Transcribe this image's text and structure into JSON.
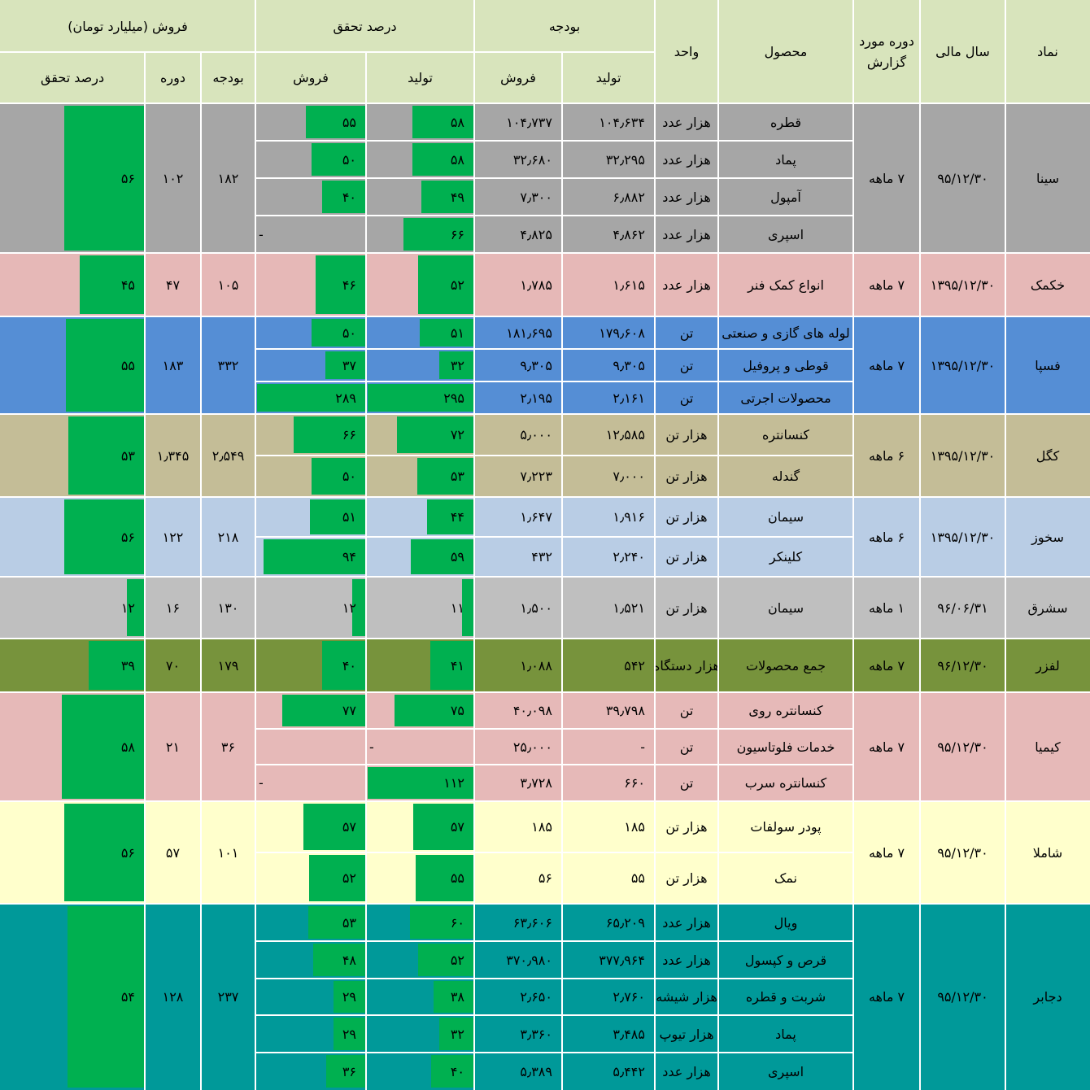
{
  "colors": {
    "bar": "#00B050",
    "header": "#D8E4BC",
    "grid": "#FFFFFF"
  },
  "header": {
    "symbol": "نماد",
    "fiscal_year": "سال مالی",
    "period_line1": "دوره مورد",
    "period_line2": "گزارش",
    "product": "محصول",
    "unit": "واحد",
    "budget": "بودجه",
    "budget_production": "تولید",
    "budget_sales": "فروش",
    "achievement": "درصد تحقق",
    "ach_production": "تولید",
    "ach_sales": "فروش",
    "sales_group": "فروش (میلیارد تومان)",
    "sales_budget": "بودجه",
    "sales_period": "دوره",
    "sales_achievement": "درصد تحقق"
  },
  "companies": [
    {
      "symbol": "سینا",
      "year": "۹۵/۱۲/۳۰",
      "period": "۷ ماهه",
      "color": "#A6A6A6",
      "sales": {
        "budget": "۱۸۲",
        "period": "۱۰۲",
        "achievement": "۵۶",
        "achievement_pct": 56
      },
      "rows": [
        {
          "product": "قطره",
          "unit": "هزار عدد",
          "budget_prod": "۱۰۴٫۶۳۴",
          "budget_sales": "۱۰۴٫۷۳۷",
          "prod_text": "۵۸",
          "prod_pct": 58,
          "sales_text": "۵۵",
          "sales_pct": 55
        },
        {
          "product": "پماد",
          "unit": "هزار عدد",
          "budget_prod": "۳۲٫۲۹۵",
          "budget_sales": "۳۲٫۶۸۰",
          "prod_text": "۵۸",
          "prod_pct": 58,
          "sales_text": "۵۰",
          "sales_pct": 50
        },
        {
          "product": "آمپول",
          "unit": "هزار عدد",
          "budget_prod": "۶٫۸۸۲",
          "budget_sales": "۷٫۳۰۰",
          "prod_text": "۴۹",
          "prod_pct": 49,
          "sales_text": "۴۰",
          "sales_pct": 40
        },
        {
          "product": "اسپری",
          "unit": "هزار عدد",
          "budget_prod": "۴٫۸۶۲",
          "budget_sales": "۴٫۸۲۵",
          "prod_text": "۶۶",
          "prod_pct": 66,
          "sales_text": "-",
          "sales_pct": 0
        }
      ]
    },
    {
      "symbol": "خکمک",
      "year": "۱۳۹۵/۱۲/۳۰",
      "period": "۷ ماهه",
      "color": "#E6B8B7",
      "sales": {
        "budget": "۱۰۵",
        "period": "۴۷",
        "achievement": "۴۵",
        "achievement_pct": 45
      },
      "rows": [
        {
          "product": "انواع کمک فنر",
          "unit": "هزار عدد",
          "budget_prod": "۱٫۶۱۵",
          "budget_sales": "۱٫۷۸۵",
          "prod_text": "۵۲",
          "prod_pct": 52,
          "sales_text": "۴۶",
          "sales_pct": 46
        }
      ]
    },
    {
      "symbol": "فسپا",
      "year": "۱۳۹۵/۱۲/۳۰",
      "period": "۷ ماهه",
      "color": "#558ED5",
      "sales": {
        "budget": "۳۳۲",
        "period": "۱۸۳",
        "achievement": "۵۵",
        "achievement_pct": 55
      },
      "rows": [
        {
          "product": "لوله های گازی و صنعتی",
          "unit": "تن",
          "budget_prod": "۱۷۹٫۶۰۸",
          "budget_sales": "۱۸۱٫۶۹۵",
          "prod_text": "۵۱",
          "prod_pct": 51,
          "sales_text": "۵۰",
          "sales_pct": 50
        },
        {
          "product": "قوطی و پروفیل",
          "unit": "تن",
          "budget_prod": "۹٫۳۰۵",
          "budget_sales": "۹٫۳۰۵",
          "prod_text": "۳۲",
          "prod_pct": 32,
          "sales_text": "۳۷",
          "sales_pct": 37
        },
        {
          "product": "محصولات اجرتی",
          "unit": "تن",
          "budget_prod": "۲٫۱۶۱",
          "budget_sales": "۲٫۱۹۵",
          "prod_text": "۲۹۵",
          "prod_pct": 295,
          "sales_text": "۲۸۹",
          "sales_pct": 289
        }
      ]
    },
    {
      "symbol": "کگل",
      "year": "۱۳۹۵/۱۲/۳۰",
      "period": "۶ ماهه",
      "color": "#C4BD97",
      "sales": {
        "budget": "۲٫۵۴۹",
        "period": "۱٫۳۴۵",
        "achievement": "۵۳",
        "achievement_pct": 53
      },
      "rows": [
        {
          "product": "کنسانتره",
          "unit": "هزار تن",
          "budget_prod": "۱۲٫۵۸۵",
          "budget_sales": "۵٫۰۰۰",
          "prod_text": "۷۲",
          "prod_pct": 72,
          "sales_text": "۶۶",
          "sales_pct": 66
        },
        {
          "product": "گندله",
          "unit": "هزار تن",
          "budget_prod": "۷٫۰۰۰",
          "budget_sales": "۷٫۲۲۳",
          "prod_text": "۵۳",
          "prod_pct": 53,
          "sales_text": "۵۰",
          "sales_pct": 50
        }
      ]
    },
    {
      "symbol": "سخوز",
      "year": "۱۳۹۵/۱۲/۳۰",
      "period": "۶ ماهه",
      "color": "#B9CDE5",
      "sales": {
        "budget": "۲۱۸",
        "period": "۱۲۲",
        "achievement": "۵۶",
        "achievement_pct": 56
      },
      "rows": [
        {
          "product": "سیمان",
          "unit": "هزار تن",
          "budget_prod": "۱٫۹۱۶",
          "budget_sales": "۱٫۶۴۷",
          "prod_text": "۴۴",
          "prod_pct": 44,
          "sales_text": "۵۱",
          "sales_pct": 51
        },
        {
          "product": "کلینکر",
          "unit": "هزار تن",
          "budget_prod": "۲٫۲۴۰",
          "budget_sales": "۴۳۲",
          "prod_text": "۵۹",
          "prod_pct": 59,
          "sales_text": "۹۴",
          "sales_pct": 94
        }
      ]
    },
    {
      "symbol": "سشرق",
      "year": "۹۶/۰۶/۳۱",
      "period": "۱ ماهه",
      "color": "#BFBFBF",
      "sales": {
        "budget": "۱۳۰",
        "period": "۱۶",
        "achievement": "۱۲",
        "achievement_pct": 12
      },
      "rows": [
        {
          "product": "سیمان",
          "unit": "هزار تن",
          "budget_prod": "۱٫۵۲۱",
          "budget_sales": "۱٫۵۰۰",
          "prod_text": "۱۱",
          "prod_pct": 11,
          "sales_text": "۱۲",
          "sales_pct": 12
        }
      ]
    },
    {
      "symbol": "لفزر",
      "year": "۹۶/۱۲/۳۰",
      "period": "۷ ماهه",
      "color": "#77933C",
      "sales": {
        "budget": "۱۷۹",
        "period": "۷۰",
        "achievement": "۳۹",
        "achievement_pct": 39
      },
      "rows": [
        {
          "product": "جمع محصولات",
          "unit": "هزار دستگاه",
          "budget_prod": "۵۴۲",
          "budget_sales": "۱٫۰۸۸",
          "prod_text": "۴۱",
          "prod_pct": 41,
          "sales_text": "۴۰",
          "sales_pct": 40
        }
      ]
    },
    {
      "symbol": "کیمیا",
      "year": "۹۵/۱۲/۳۰",
      "period": "۷ ماهه",
      "color": "#E6B9B8",
      "sales": {
        "budget": "۳۶",
        "period": "۲۱",
        "achievement": "۵۸",
        "achievement_pct": 58
      },
      "rows": [
        {
          "product": "کنسانتره روی",
          "unit": "تن",
          "budget_prod": "۳۹٫۷۹۸",
          "budget_sales": "۴۰٫۰۹۸",
          "prod_text": "۷۵",
          "prod_pct": 75,
          "sales_text": "۷۷",
          "sales_pct": 77
        },
        {
          "product": "خدمات فلوتاسیون",
          "unit": "تن",
          "budget_prod": "-",
          "budget_sales": "۲۵٫۰۰۰",
          "prod_text": "-",
          "prod_pct": 0,
          "sales_text": "",
          "sales_pct": 0
        },
        {
          "product": "کنسانتره سرب",
          "unit": "تن",
          "budget_prod": "۶۶۰",
          "budget_sales": "۳٫۷۲۸",
          "prod_text": "۱۱۲",
          "prod_pct": 112,
          "sales_text": "-",
          "sales_pct": 0
        }
      ]
    },
    {
      "symbol": "شاملا",
      "year": "۹۵/۱۲/۳۰",
      "period": "۷ ماهه",
      "color": "#FFFFCC",
      "sales": {
        "budget": "۱۰۱",
        "period": "۵۷",
        "achievement": "۵۶",
        "achievement_pct": 56
      },
      "rows": [
        {
          "product": "پودر سولفات",
          "unit": "هزار تن",
          "budget_prod": "۱۸۵",
          "budget_sales": "۱۸۵",
          "prod_text": "۵۷",
          "prod_pct": 57,
          "sales_text": "۵۷",
          "sales_pct": 57
        },
        {
          "product": "نمک",
          "unit": "هزار تن",
          "budget_prod": "۵۵",
          "budget_sales": "۵۶",
          "prod_text": "۵۵",
          "prod_pct": 55,
          "sales_text": "۵۲",
          "sales_pct": 52
        }
      ]
    },
    {
      "symbol": "دجابر",
      "year": "۹۵/۱۲/۳۰",
      "period": "۷ ماهه",
      "color": "#009999",
      "sales": {
        "budget": "۲۳۷",
        "period": "۱۲۸",
        "achievement": "۵۴",
        "achievement_pct": 54
      },
      "rows": [
        {
          "product": "ویال",
          "unit": "هزار عدد",
          "budget_prod": "۶۵٫۲۰۹",
          "budget_sales": "۶۳٫۶۰۶",
          "prod_text": "۶۰",
          "prod_pct": 60,
          "sales_text": "۵۳",
          "sales_pct": 53
        },
        {
          "product": "قرص و کپسول",
          "unit": "هزار عدد",
          "budget_prod": "۳۷۷٫۹۶۴",
          "budget_sales": "۳۷۰٫۹۸۰",
          "prod_text": "۵۲",
          "prod_pct": 52,
          "sales_text": "۴۸",
          "sales_pct": 48
        },
        {
          "product": "شربت و قطره",
          "unit": "هزار شیشه",
          "budget_prod": "۲٫۷۶۰",
          "budget_sales": "۲٫۶۵۰",
          "prod_text": "۳۸",
          "prod_pct": 38,
          "sales_text": "۲۹",
          "sales_pct": 29
        },
        {
          "product": "پماد",
          "unit": "هزار تیوپ",
          "budget_prod": "۳٫۴۸۵",
          "budget_sales": "۳٫۳۶۰",
          "prod_text": "۳۲",
          "prod_pct": 32,
          "sales_text": "۲۹",
          "sales_pct": 29
        },
        {
          "product": "اسپری",
          "unit": "هزار عدد",
          "budget_prod": "۵٫۴۴۲",
          "budget_sales": "۵٫۳۸۹",
          "prod_text": "۴۰",
          "prod_pct": 40,
          "sales_text": "۳۶",
          "sales_pct": 36
        }
      ]
    }
  ]
}
